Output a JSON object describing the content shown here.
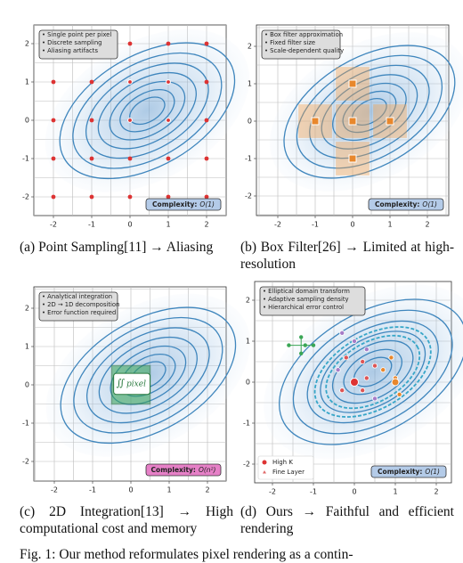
{
  "panels": [
    {
      "notes": [
        "• Single point per pixel",
        "• Discrete sampling",
        "• Aliasing artifacts"
      ],
      "complexity": {
        "label": "Complexity:",
        "value": "O(1)"
      },
      "xticks": [
        -2,
        -1,
        0,
        1,
        2
      ],
      "yticks": [
        -2,
        -1,
        0,
        1,
        2
      ],
      "caption": "(a) Point Sampling[11] → Aliasing"
    },
    {
      "notes": [
        "• Box filter approximation",
        "• Fixed filter size",
        "• Scale-dependent quality"
      ],
      "complexity": {
        "label": "Complexity:",
        "value": "O(1)"
      },
      "xticks": [
        -2,
        -1,
        0,
        1,
        2
      ],
      "yticks": [
        -2,
        -1,
        0,
        1,
        2
      ],
      "caption": "(b) Box Filter[26] → Limited at high-resolution"
    },
    {
      "notes": [
        "• Analytical integration",
        "• 2D → 1D decomposition",
        "• Error function required"
      ],
      "complexity": {
        "label": "Complexity:",
        "value": "O(n²)"
      },
      "integral": {
        "symbol": "∬",
        "text": "pixel"
      },
      "xticks": [
        -2,
        -1,
        0,
        1,
        2
      ],
      "yticks": [
        -2,
        -1,
        0,
        1,
        2
      ],
      "caption": "(c) 2D Integration[13] → High computational cost and memory"
    },
    {
      "notes": [
        "• Elliptical domain transform",
        "• Adaptive sampling density",
        "• Hierarchical error control"
      ],
      "complexity": {
        "label": "Complexity:",
        "value": "O(1)"
      },
      "legend": [
        "High K",
        "Fine Layer"
      ],
      "xticks": [
        -2,
        -1,
        0,
        1,
        2
      ],
      "yticks": [
        -2,
        -1,
        0,
        1,
        2
      ],
      "caption": "(d) Ours → Faithful and efficient rendering"
    }
  ],
  "figure_caption": "Fig. 1: Our method reformulates pixel rendering as a contin-"
}
